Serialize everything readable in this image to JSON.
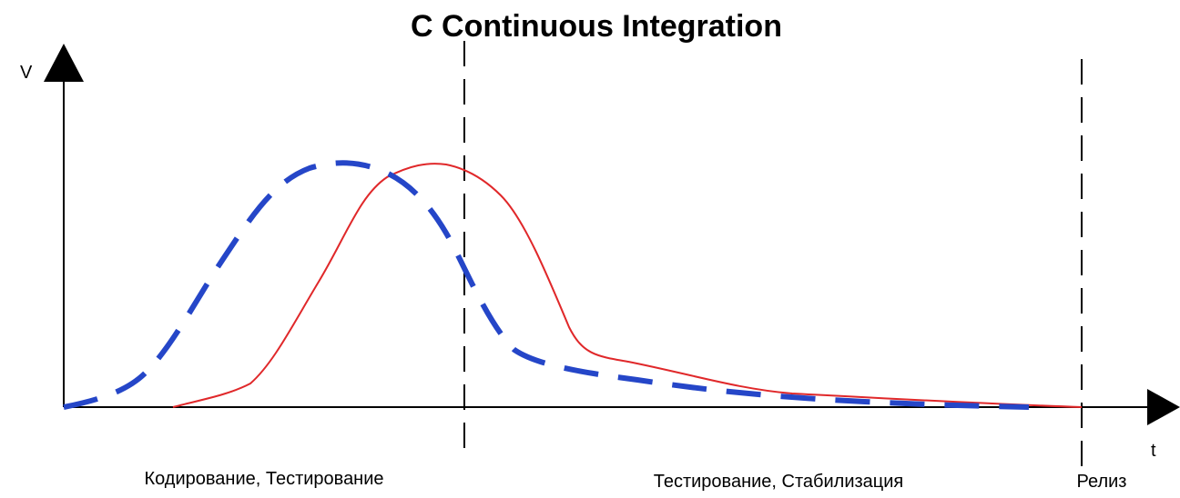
{
  "title": "C Continuous Integration",
  "axes": {
    "y_label": "V",
    "x_label": "t"
  },
  "phases": [
    "Кодирование, Тестирование",
    "Тестирование, Стабилизация",
    "Релиз"
  ]
}
